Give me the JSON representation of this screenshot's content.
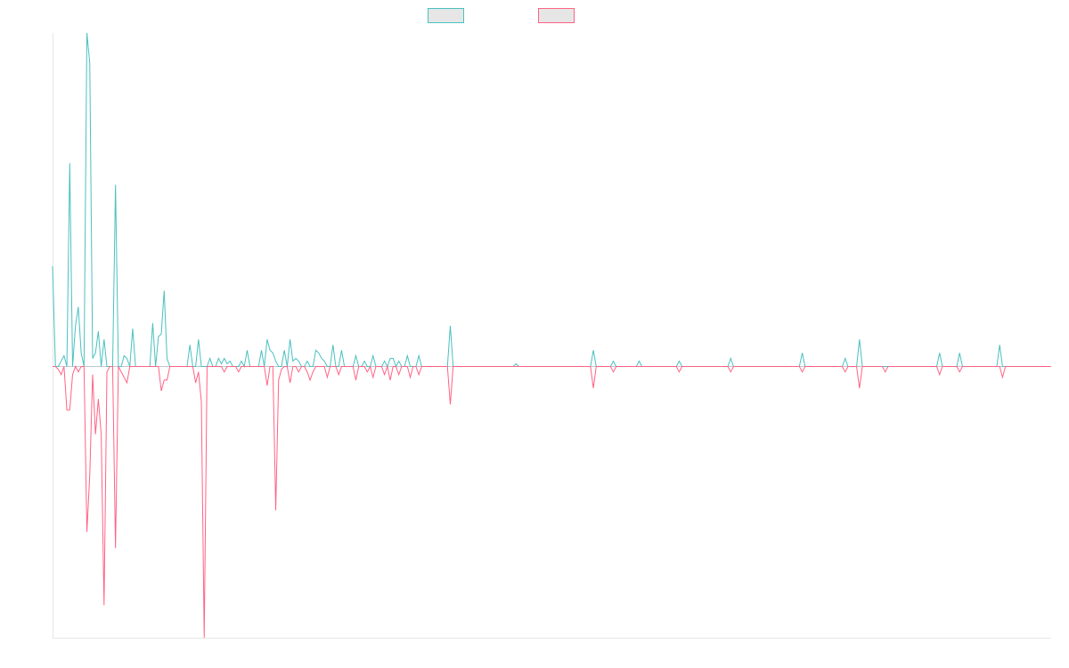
{
  "chart_data": {
    "type": "line",
    "title": "",
    "xlabel": "",
    "ylabel": "",
    "grid": false,
    "legend_position": "top-center",
    "ylim": [
      -1.0,
      1.23
    ],
    "x_count": 350,
    "series": [
      {
        "color": "#4bc0c0",
        "legend_fill": "#e6e6e6",
        "direction": "up",
        "spikes": [
          [
            0,
            0.37
          ],
          [
            1,
            0.0
          ],
          [
            3,
            0.02
          ],
          [
            4,
            0.04
          ],
          [
            5,
            0.0
          ],
          [
            6,
            0.75
          ],
          [
            7,
            0.0
          ],
          [
            8,
            0.15
          ],
          [
            9,
            0.22
          ],
          [
            10,
            0.05
          ],
          [
            11,
            0.0
          ],
          [
            12,
            1.23
          ],
          [
            13,
            1.12
          ],
          [
            14,
            0.03
          ],
          [
            15,
            0.05
          ],
          [
            16,
            0.13
          ],
          [
            17,
            0.0
          ],
          [
            18,
            0.1
          ],
          [
            19,
            0.0
          ],
          [
            22,
            0.67
          ],
          [
            23,
            0.0
          ],
          [
            25,
            0.04
          ],
          [
            26,
            0.03
          ],
          [
            28,
            0.14
          ],
          [
            29,
            0.0
          ],
          [
            35,
            0.16
          ],
          [
            36,
            0.0
          ],
          [
            37,
            0.11
          ],
          [
            38,
            0.12
          ],
          [
            39,
            0.28
          ],
          [
            40,
            0.03
          ],
          [
            41,
            0.0
          ],
          [
            48,
            0.08
          ],
          [
            49,
            0.0
          ],
          [
            51,
            0.1
          ],
          [
            52,
            0.0
          ],
          [
            55,
            0.03
          ],
          [
            56,
            0.0
          ],
          [
            58,
            0.03
          ],
          [
            59,
            0.01
          ],
          [
            60,
            0.03
          ],
          [
            61,
            0.01
          ],
          [
            62,
            0.02
          ],
          [
            63,
            0.0
          ],
          [
            66,
            0.02
          ],
          [
            67,
            0.0
          ],
          [
            68,
            0.06
          ],
          [
            69,
            0.0
          ],
          [
            73,
            0.06
          ],
          [
            74,
            0.0
          ],
          [
            75,
            0.1
          ],
          [
            76,
            0.06
          ],
          [
            77,
            0.05
          ],
          [
            78,
            0.02
          ],
          [
            79,
            0.0
          ],
          [
            81,
            0.06
          ],
          [
            82,
            0.0
          ],
          [
            83,
            0.1
          ],
          [
            84,
            0.02
          ],
          [
            85,
            0.03
          ],
          [
            86,
            0.02
          ],
          [
            87,
            0.0
          ],
          [
            89,
            0.02
          ],
          [
            90,
            0.0
          ],
          [
            92,
            0.06
          ],
          [
            93,
            0.05
          ],
          [
            94,
            0.03
          ],
          [
            95,
            0.02
          ],
          [
            96,
            0.0
          ],
          [
            98,
            0.08
          ],
          [
            99,
            0.0
          ],
          [
            101,
            0.06
          ],
          [
            102,
            0.0
          ],
          [
            106,
            0.04
          ],
          [
            107,
            0.0
          ],
          [
            109,
            0.02
          ],
          [
            110,
            0.0
          ],
          [
            112,
            0.04
          ],
          [
            113,
            0.0
          ],
          [
            116,
            0.02
          ],
          [
            117,
            0.0
          ],
          [
            118,
            0.03
          ],
          [
            119,
            0.03
          ],
          [
            120,
            0.0
          ],
          [
            121,
            0.02
          ],
          [
            122,
            0.0
          ],
          [
            124,
            0.04
          ],
          [
            125,
            0.0
          ],
          [
            128,
            0.04
          ],
          [
            129,
            0.0
          ],
          [
            139,
            0.15
          ],
          [
            140,
            0.0
          ],
          [
            162,
            0.01
          ],
          [
            163,
            0.0
          ],
          [
            189,
            0.06
          ],
          [
            190,
            0.0
          ],
          [
            196,
            0.02
          ],
          [
            197,
            0.0
          ],
          [
            205,
            0.02
          ],
          [
            206,
            0.0
          ],
          [
            219,
            0.02
          ],
          [
            220,
            0.0
          ],
          [
            237,
            0.03
          ],
          [
            238,
            0.0
          ],
          [
            262,
            0.05
          ],
          [
            263,
            0.0
          ],
          [
            277,
            0.03
          ],
          [
            278,
            0.0
          ],
          [
            282,
            0.1
          ],
          [
            283,
            0.0
          ],
          [
            310,
            0.05
          ],
          [
            311,
            0.0
          ],
          [
            317,
            0.05
          ],
          [
            318,
            0.0
          ],
          [
            331,
            0.08
          ],
          [
            332,
            0.0
          ]
        ]
      },
      {
        "color": "#ff6384",
        "legend_fill": "#e6e6e6",
        "direction": "down",
        "spikes": [
          [
            0,
            0.0
          ],
          [
            1,
            0.0
          ],
          [
            2,
            0.01
          ],
          [
            3,
            0.03
          ],
          [
            4,
            0.0
          ],
          [
            5,
            0.16
          ],
          [
            6,
            0.16
          ],
          [
            7,
            0.03
          ],
          [
            8,
            0.0
          ],
          [
            9,
            0.02
          ],
          [
            10,
            0.0
          ],
          [
            12,
            0.61
          ],
          [
            13,
            0.4
          ],
          [
            14,
            0.03
          ],
          [
            15,
            0.25
          ],
          [
            16,
            0.12
          ],
          [
            17,
            0.25
          ],
          [
            18,
            0.88
          ],
          [
            19,
            0.02
          ],
          [
            20,
            0.0
          ],
          [
            22,
            0.67
          ],
          [
            23,
            0.0
          ],
          [
            24,
            0.02
          ],
          [
            25,
            0.04
          ],
          [
            26,
            0.06
          ],
          [
            27,
            0.0
          ],
          [
            38,
            0.09
          ],
          [
            39,
            0.05
          ],
          [
            40,
            0.05
          ],
          [
            41,
            0.0
          ],
          [
            49,
            0.0
          ],
          [
            50,
            0.06
          ],
          [
            51,
            0.02
          ],
          [
            52,
            0.13
          ],
          [
            53,
            1.0
          ],
          [
            54,
            0.0
          ],
          [
            60,
            0.02
          ],
          [
            61,
            0.0
          ],
          [
            65,
            0.02
          ],
          [
            66,
            0.0
          ],
          [
            75,
            0.07
          ],
          [
            76,
            0.0
          ],
          [
            78,
            0.53
          ],
          [
            79,
            0.05
          ],
          [
            80,
            0.01
          ],
          [
            81,
            0.0
          ],
          [
            83,
            0.06
          ],
          [
            84,
            0.0
          ],
          [
            86,
            0.02
          ],
          [
            87,
            0.0
          ],
          [
            89,
            0.02
          ],
          [
            90,
            0.05
          ],
          [
            91,
            0.02
          ],
          [
            92,
            0.0
          ],
          [
            96,
            0.04
          ],
          [
            97,
            0.0
          ],
          [
            100,
            0.03
          ],
          [
            101,
            0.0
          ],
          [
            106,
            0.05
          ],
          [
            107,
            0.0
          ],
          [
            110,
            0.02
          ],
          [
            111,
            0.0
          ],
          [
            112,
            0.04
          ],
          [
            113,
            0.0
          ],
          [
            116,
            0.03
          ],
          [
            117,
            0.0
          ],
          [
            118,
            0.05
          ],
          [
            119,
            0.0
          ],
          [
            121,
            0.03
          ],
          [
            122,
            0.0
          ],
          [
            125,
            0.04
          ],
          [
            126,
            0.0
          ],
          [
            128,
            0.03
          ],
          [
            129,
            0.0
          ],
          [
            139,
            0.14
          ],
          [
            140,
            0.0
          ],
          [
            189,
            0.08
          ],
          [
            190,
            0.0
          ],
          [
            196,
            0.02
          ],
          [
            197,
            0.0
          ],
          [
            219,
            0.02
          ],
          [
            220,
            0.0
          ],
          [
            237,
            0.02
          ],
          [
            238,
            0.0
          ],
          [
            262,
            0.02
          ],
          [
            263,
            0.0
          ],
          [
            277,
            0.02
          ],
          [
            278,
            0.0
          ],
          [
            282,
            0.08
          ],
          [
            283,
            0.0
          ],
          [
            291,
            0.02
          ],
          [
            292,
            0.0
          ],
          [
            310,
            0.03
          ],
          [
            311,
            0.0
          ],
          [
            317,
            0.02
          ],
          [
            318,
            0.0
          ],
          [
            332,
            0.04
          ],
          [
            333,
            0.0
          ]
        ]
      }
    ]
  }
}
